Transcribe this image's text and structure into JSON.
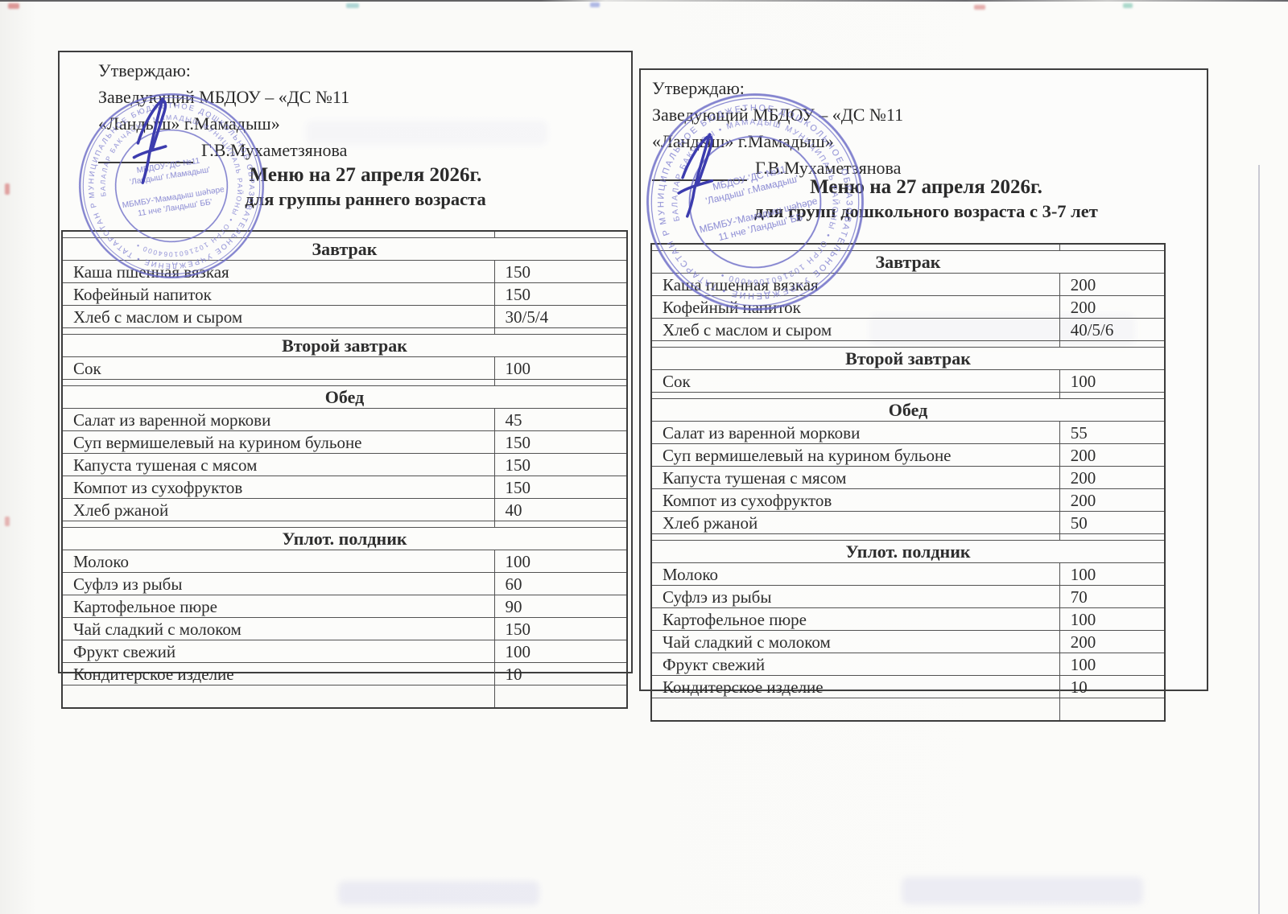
{
  "doc": {
    "pages": [
      {
        "side": "left",
        "approval": [
          "Утверждаю:",
          "Заведующий МБДОУ – «ДС №11",
          "«Ландыш» г.Мамадыш»"
        ],
        "signer": "Г.В.Мухаметзянова",
        "title": "Меню на 27 апреля 2026г.",
        "subtitle": "для группы раннего возраста",
        "sections": [
          {
            "name": "Завтрак",
            "items": [
              {
                "dish": "Каша пшенная вязкая",
                "portion": "150"
              },
              {
                "dish": "Кофейный напиток",
                "portion": "150"
              },
              {
                "dish": "Хлеб с маслом и сыром",
                "portion": "30/5/4"
              }
            ]
          },
          {
            "name": "Второй завтрак",
            "items": [
              {
                "dish": "Сок",
                "portion": "100"
              }
            ]
          },
          {
            "name": "Обед",
            "items": [
              {
                "dish": "Салат из варенной моркови",
                "portion": "45"
              },
              {
                "dish": "Суп вермишелевый на курином бульоне",
                "portion": "150"
              },
              {
                "dish": "Капуста тушеная с мясом",
                "portion": "150"
              },
              {
                "dish": "Компот из сухофруктов",
                "portion": "150"
              },
              {
                "dish": "Хлеб ржаной",
                "portion": "40"
              }
            ]
          },
          {
            "name": "Уплот. полдник",
            "items": [
              {
                "dish": "Молоко",
                "portion": "100"
              },
              {
                "dish": "Суфлэ из рыбы",
                "portion": "60"
              },
              {
                "dish": "Картофельное пюре",
                "portion": "90"
              },
              {
                "dish": "Чай сладкий с молоком",
                "portion": "150"
              },
              {
                "dish": "Фрукт свежий",
                "portion": "100"
              },
              {
                "dish": "Кондитерское изделие",
                "portion": "10"
              }
            ]
          }
        ]
      },
      {
        "side": "right",
        "approval": [
          "Утверждаю:",
          "Заведующий МБДОУ – «ДС №11",
          "«Ландыш» г.Мамадыш»"
        ],
        "signer": "Г.В.Мухаметзянова",
        "title": "Меню на 27 апреля 2026г.",
        "subtitle": "для групп дошкольного возраста с 3-7 лет",
        "sections": [
          {
            "name": "Завтрак",
            "items": [
              {
                "dish": "Каша пшенная вязкая",
                "portion": "200"
              },
              {
                "dish": "Кофейный напиток",
                "portion": "200"
              },
              {
                "dish": "Хлеб с маслом и сыром",
                "portion": "40/5/6"
              }
            ]
          },
          {
            "name": "Второй завтрак",
            "items": [
              {
                "dish": "Сок",
                "portion": "100"
              }
            ]
          },
          {
            "name": "Обед",
            "items": [
              {
                "dish": "Салат из варенной моркови",
                "portion": "55"
              },
              {
                "dish": "Суп вермишелевый на курином бульоне",
                "portion": "200"
              },
              {
                "dish": "Капуста тушеная с мясом",
                "portion": "200"
              },
              {
                "dish": "Компот из сухофруктов",
                "portion": "200"
              },
              {
                "dish": "Хлеб ржаной",
                "portion": "50"
              }
            ]
          },
          {
            "name": "Уплот. полдник",
            "items": [
              {
                "dish": "Молоко",
                "portion": "100"
              },
              {
                "dish": "Суфлэ из рыбы",
                "portion": "70"
              },
              {
                "dish": "Картофельное пюре",
                "portion": "100"
              },
              {
                "dish": "Чай сладкий с молоком",
                "portion": "200"
              },
              {
                "dish": "Фрукт свежий",
                "portion": "100"
              },
              {
                "dish": "Кондитерское изделие",
                "portion": "10"
              }
            ]
          }
        ]
      }
    ],
    "stamp": {
      "ring_outer": "МУНИЦИПАЛЬНОЕ БЮДЖЕТНОЕ ДОШКОЛЬНОЕ ОБРАЗОВАТЕЛЬНОЕ УЧРЕЖДЕНИЕ • ТАТАРСТАН РЕСПУБЛИКАСЫ •",
      "ring_inner": "БАЛАЛАР БАКЧАСЫ • МАМАДЫШ МУНИЦИПАЛЬ РАЙОНЫ • ОГРН 1021601064000 •",
      "center_lines": [
        "МБДОУ-'ДС №11",
        "'Ландыш' г.Мамадыш'",
        "МБМБУ-'Мамадыш шәһәре",
        "11 нче 'Ландыш' ББ'"
      ]
    },
    "colors": {
      "stamp_ink": "#6a6ac6",
      "signature_ink": "#3c3caе",
      "table_line": "#4a4a4a",
      "text": "#2a2a2a"
    }
  }
}
